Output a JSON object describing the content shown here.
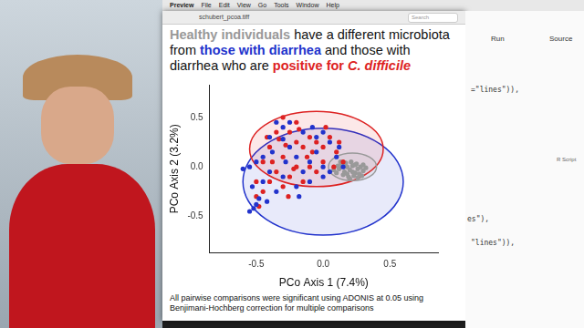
{
  "chart_data": {
    "type": "scatter",
    "title": [
      {
        "text": "Healthy individuals",
        "color": "#999999"
      },
      {
        "text": " have a different microbiota from ",
        "color": "#111111"
      },
      {
        "text": "those with diarrhea",
        "color": "#2233cc"
      },
      {
        "text": " and those with diarrhea who are ",
        "color": "#111111"
      },
      {
        "text": "positive for ",
        "color": "#dd2222"
      },
      {
        "text": "C. difficile",
        "color": "#dd2222"
      }
    ],
    "x_label": "PCo Axis 1 (7.4%)",
    "y_label": "PCo Axis 2 (3.2%)",
    "xlim": [
      -0.85,
      0.86
    ],
    "ylim": [
      -0.87,
      0.83
    ],
    "xticks": [
      -0.5,
      {
        "value": 0,
        "label": "0.0"
      },
      0.5
    ],
    "yticks": [
      -0.5,
      {
        "value": 0,
        "label": "0.0"
      },
      0.5
    ],
    "grid": false,
    "annotation": "All pairwise comparisons were significant using ADONIS at 0.05 using Benjimani-Hochberg correction for multiple comparisons",
    "series": [
      {
        "color": "#2233cc",
        "ellipse": {
          "center": [
            0.0,
            -0.15
          ],
          "radius": [
            0.6,
            0.54
          ]
        },
        "values": [
          [
            -0.55,
            -0.45
          ],
          [
            -0.52,
            -0.42
          ],
          [
            -0.5,
            -0.38
          ],
          [
            -0.48,
            -0.32
          ],
          [
            -0.53,
            -0.2
          ],
          [
            -0.55,
            0.0
          ],
          [
            -0.45,
            0.1
          ],
          [
            -0.4,
            0.3
          ],
          [
            -0.35,
            0.45
          ],
          [
            -0.3,
            0.4
          ],
          [
            -0.25,
            0.2
          ],
          [
            -0.2,
            0.1
          ],
          [
            -0.15,
            -0.05
          ],
          [
            -0.1,
            0.05
          ],
          [
            -0.05,
            0.15
          ],
          [
            0.0,
            0.0
          ],
          [
            0.05,
            -0.05
          ],
          [
            0.1,
            0.1
          ],
          [
            -0.3,
            -0.1
          ],
          [
            -0.35,
            -0.25
          ],
          [
            -0.4,
            -0.05
          ],
          [
            -0.2,
            -0.2
          ],
          [
            -0.1,
            -0.15
          ],
          [
            0.0,
            -0.1
          ],
          [
            -0.05,
            0.3
          ],
          [
            -0.15,
            0.35
          ],
          [
            -0.25,
            0.45
          ],
          [
            0.05,
            0.25
          ],
          [
            0.12,
            0.2
          ],
          [
            0.15,
            0.0
          ],
          [
            -0.45,
            -0.15
          ],
          [
            -0.5,
            0.05
          ],
          [
            -0.6,
            -0.02
          ],
          [
            -0.38,
            0.15
          ],
          [
            -0.28,
            0.05
          ],
          [
            -0.18,
            -0.3
          ],
          [
            -0.08,
            0.4
          ],
          [
            0.0,
            0.35
          ],
          [
            -0.42,
            -0.35
          ],
          [
            -0.3,
            0.28
          ]
        ]
      },
      {
        "color": "#dd2222",
        "ellipse": {
          "center": [
            -0.05,
            0.18
          ],
          "radius": [
            0.5,
            0.38
          ]
        },
        "values": [
          [
            -0.5,
            -0.3
          ],
          [
            -0.45,
            -0.25
          ],
          [
            -0.4,
            0.2
          ],
          [
            -0.35,
            0.35
          ],
          [
            -0.3,
            0.5
          ],
          [
            -0.25,
            0.35
          ],
          [
            -0.2,
            0.25
          ],
          [
            -0.15,
            0.2
          ],
          [
            -0.1,
            0.3
          ],
          [
            -0.05,
            0.25
          ],
          [
            0.0,
            0.2
          ],
          [
            0.05,
            0.3
          ],
          [
            0.1,
            0.15
          ],
          [
            0.15,
            0.05
          ],
          [
            -0.3,
            0.1
          ],
          [
            -0.35,
            -0.05
          ],
          [
            -0.25,
            -0.1
          ],
          [
            -0.2,
            0.0
          ],
          [
            -0.1,
            0.0
          ],
          [
            -0.05,
            -0.05
          ],
          [
            0.0,
            0.05
          ],
          [
            -0.15,
            -0.15
          ],
          [
            -0.3,
            -0.2
          ],
          [
            -0.4,
            -0.15
          ],
          [
            -0.45,
            0.05
          ],
          [
            -0.2,
            0.45
          ],
          [
            -0.12,
            0.1
          ],
          [
            0.08,
            0.0
          ],
          [
            -0.28,
            0.22
          ],
          [
            -0.38,
            0.05
          ],
          [
            -0.5,
            -0.15
          ],
          [
            -0.33,
            0.28
          ],
          [
            -0.22,
            -0.02
          ],
          [
            0.02,
            0.4
          ],
          [
            -0.08,
            0.15
          ],
          [
            -0.48,
            -0.4
          ],
          [
            -0.42,
            0.3
          ],
          [
            0.12,
            0.25
          ],
          [
            -0.18,
            0.38
          ],
          [
            -0.26,
            -0.3
          ]
        ]
      },
      {
        "color": "#999999",
        "ellipse": {
          "center": [
            0.22,
            0.0
          ],
          "radius": [
            0.18,
            0.14
          ]
        },
        "values": [
          [
            0.12,
            -0.02
          ],
          [
            0.14,
            0.02
          ],
          [
            0.16,
            -0.05
          ],
          [
            0.18,
            0.0
          ],
          [
            0.2,
            -0.03
          ],
          [
            0.22,
            0.01
          ],
          [
            0.24,
            -0.06
          ],
          [
            0.26,
            -0.02
          ],
          [
            0.28,
            0.0
          ],
          [
            0.3,
            -0.04
          ],
          [
            0.15,
            -0.08
          ],
          [
            0.19,
            -0.1
          ],
          [
            0.23,
            -0.09
          ],
          [
            0.27,
            -0.07
          ],
          [
            0.17,
            0.04
          ],
          [
            0.21,
            0.05
          ],
          [
            0.25,
            0.03
          ],
          [
            0.1,
            -0.06
          ],
          [
            0.13,
            0.05
          ],
          [
            0.29,
            -0.09
          ],
          [
            0.32,
            -0.01
          ],
          [
            0.2,
            -0.12
          ],
          [
            0.18,
            -0.07
          ],
          [
            0.22,
            -0.05
          ],
          [
            0.24,
            0.02
          ],
          [
            0.16,
            0.01
          ],
          [
            0.11,
            0.01
          ],
          [
            0.26,
            -0.11
          ],
          [
            0.08,
            -0.03
          ],
          [
            0.3,
            0.02
          ]
        ]
      }
    ]
  },
  "screen": {
    "menu": [
      "Preview",
      "File",
      "Edit",
      "View",
      "Go",
      "Tools",
      "Window",
      "Help"
    ],
    "window_title": "schubert_pcoa.tiff",
    "search": "Search",
    "editor": {
      "buttons": [
        "Run",
        "Source"
      ],
      "status": "R Script",
      "code": [
        "=\"lines\")),",
        "es\"),",
        "\"lines\")),"
      ]
    }
  }
}
